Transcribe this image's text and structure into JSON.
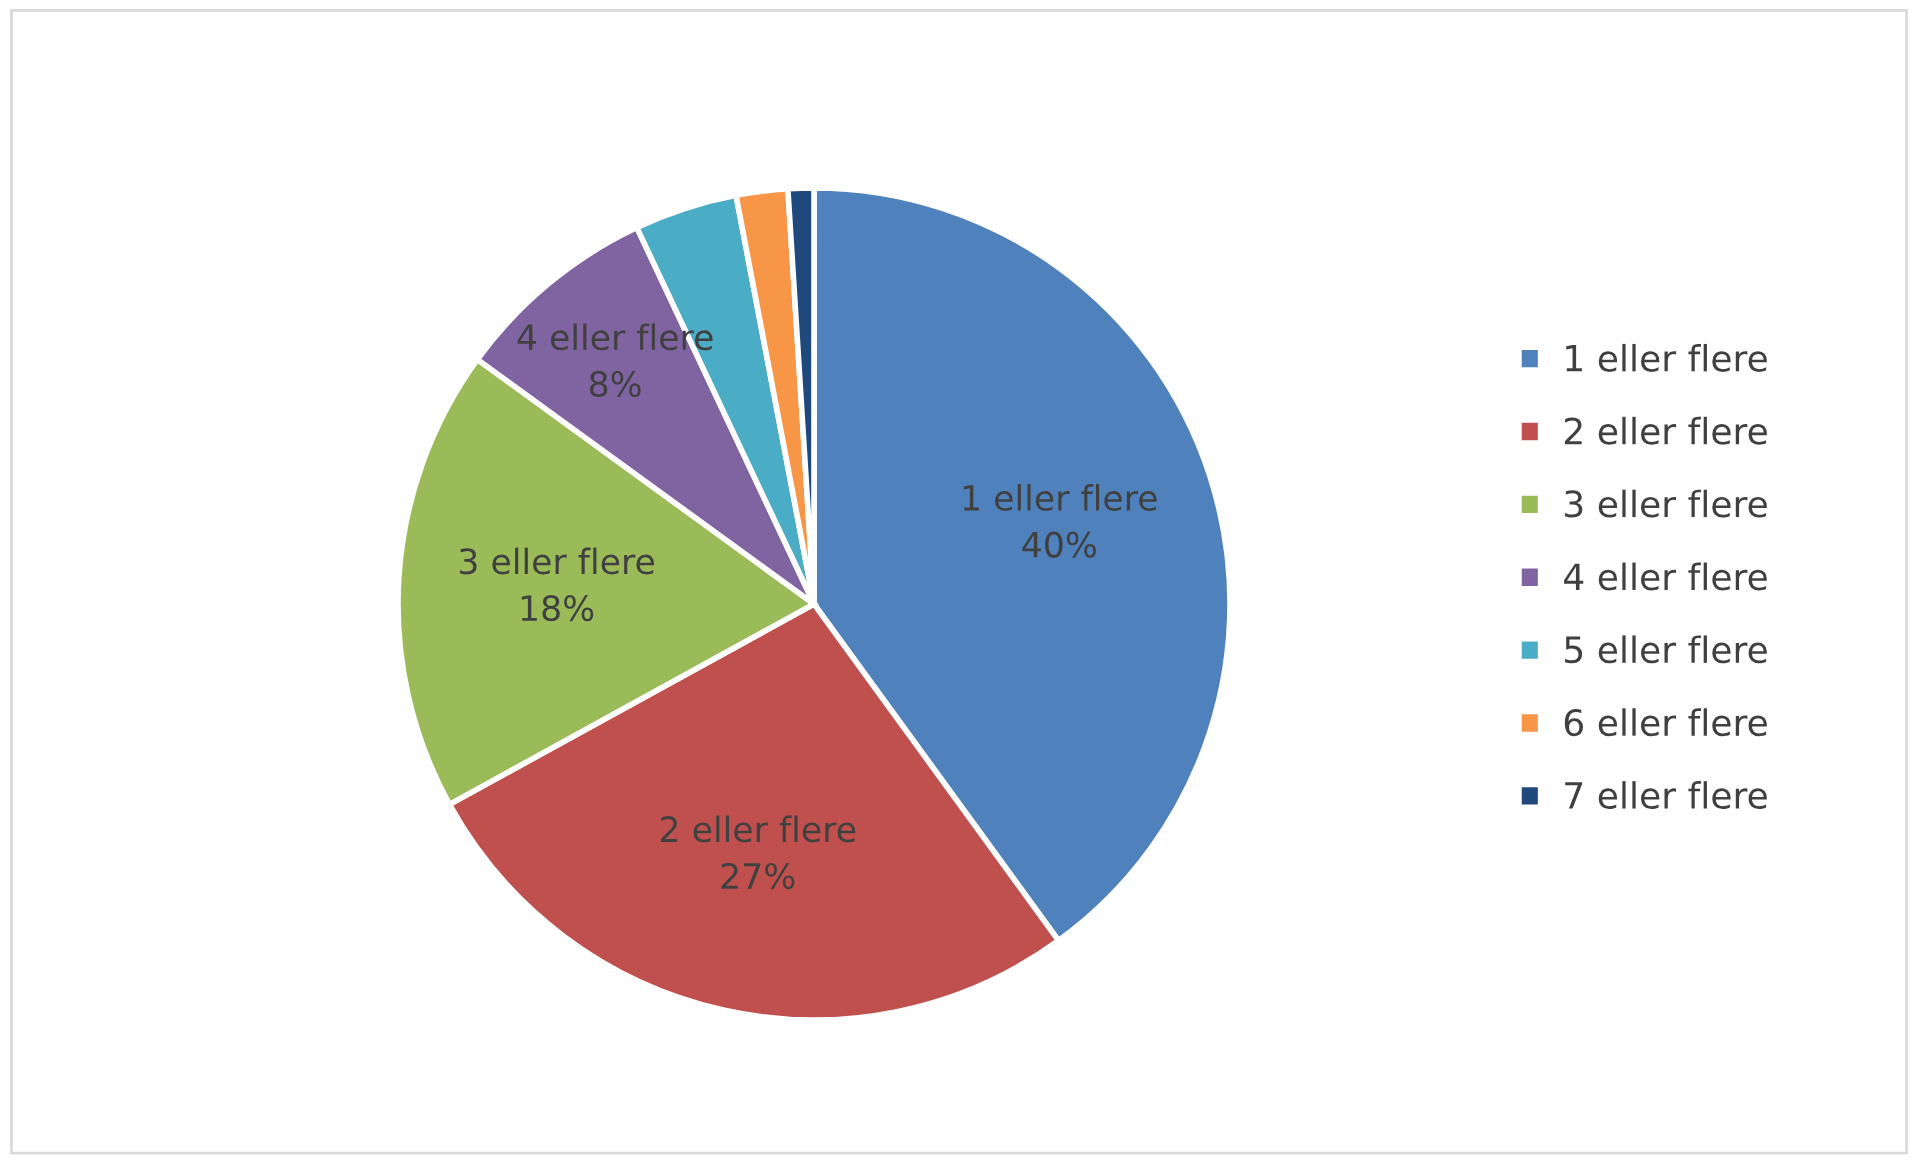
{
  "chart_data": {
    "type": "pie",
    "categories": [
      "1 eller flere",
      "2 eller flere",
      "3 eller flere",
      "4 eller flere",
      "5 eller flere",
      "6 eller flere",
      "7 eller flere"
    ],
    "values": [
      40,
      27,
      18,
      8,
      4,
      2,
      1
    ],
    "value_labels": [
      "40%",
      "27%",
      "18%",
      "8%",
      null,
      null,
      null
    ],
    "colors": [
      "#4f81bd",
      "#c0504d",
      "#9bbb59",
      "#8064a2",
      "#4bacc6",
      "#f79646",
      "#1f497d"
    ],
    "legend": "right"
  }
}
